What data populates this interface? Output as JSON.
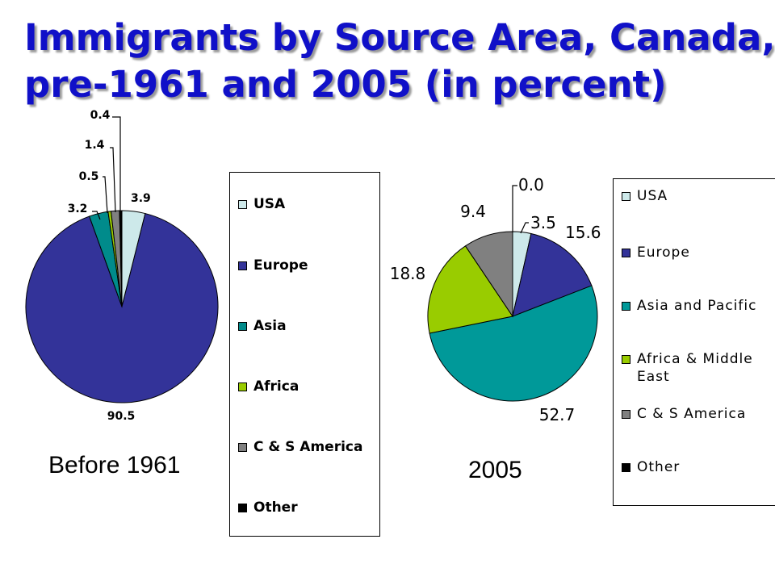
{
  "title_lines": [
    "Immigrants by Source Area, Canada,",
    "pre-1961 and 2005 (in percent)"
  ],
  "chart_data": [
    {
      "type": "pie",
      "caption": "Before 1961",
      "slices": [
        {
          "label": "USA",
          "value": 3.9,
          "value_label": "3.9",
          "color": "#cde9ea"
        },
        {
          "label": "Europe",
          "value": 90.5,
          "value_label": "90.5",
          "color": "#333399"
        },
        {
          "label": "Asia",
          "value": 3.2,
          "value_label": "3.2",
          "color": "#008b8b"
        },
        {
          "label": "Africa",
          "value": 0.5,
          "value_label": "0.5",
          "color": "#99cc00"
        },
        {
          "label": "C & S America",
          "value": 1.4,
          "value_label": "1.4",
          "color": "#808080"
        },
        {
          "label": "Other",
          "value": 0.4,
          "value_label": "0.4",
          "color": "#000000"
        }
      ],
      "start": "12 o'clock",
      "direction": "clockwise",
      "legend_position": "right"
    },
    {
      "type": "pie",
      "caption": "2005",
      "slices": [
        {
          "label": "USA",
          "value": 3.5,
          "value_label": "3.5",
          "color": "#cde9ea"
        },
        {
          "label": "Europe",
          "value": 15.6,
          "value_label": "15.6",
          "color": "#333399"
        },
        {
          "label": "Asia and Pacific",
          "value": 52.7,
          "value_label": "52.7",
          "color": "#009999"
        },
        {
          "label": "Africa & Middle East",
          "value": 18.8,
          "value_label": "18.8",
          "color": "#99cc00"
        },
        {
          "label": "C & S America",
          "value": 9.4,
          "value_label": "9.4",
          "color": "#808080"
        },
        {
          "label": "Other",
          "value": 0.0,
          "value_label": "0.0",
          "color": "#000000"
        }
      ],
      "start": "12 o'clock",
      "direction": "clockwise",
      "legend_position": "right"
    }
  ]
}
